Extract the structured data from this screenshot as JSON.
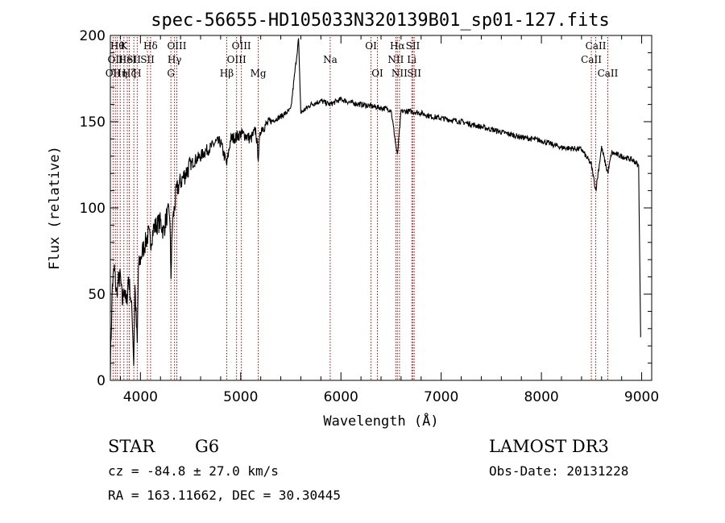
{
  "chart_data": {
    "type": "line",
    "title": "spec-56655-HD105033N320139B01_sp01-127.fits",
    "xlabel": "Wavelength (Å)",
    "ylabel": "Flux (relative)",
    "xlim": [
      3700,
      9100
    ],
    "ylim": [
      0,
      200
    ],
    "xticks": [
      4000,
      5000,
      6000,
      7000,
      8000,
      9000
    ],
    "yticks": [
      0,
      50,
      100,
      150,
      200
    ],
    "series": [
      {
        "name": "spectrum",
        "x": [
          3700,
          3720,
          3740,
          3760,
          3780,
          3800,
          3820,
          3840,
          3860,
          3880,
          3900,
          3920,
          3933,
          3945,
          3968,
          3980,
          4000,
          4020,
          4050,
          4080,
          4101,
          4130,
          4160,
          4200,
          4230,
          4260,
          4290,
          4305,
          4320,
          4340,
          4360,
          4400,
          4450,
          4500,
          4550,
          4600,
          4650,
          4700,
          4750,
          4800,
          4861,
          4900,
          4950,
          5000,
          5050,
          5100,
          5150,
          5175,
          5200,
          5300,
          5400,
          5500,
          5577,
          5600,
          5700,
          5800,
          5890,
          6000,
          6100,
          6200,
          6300,
          6400,
          6500,
          6563,
          6600,
          6700,
          6800,
          6900,
          7000,
          7200,
          7400,
          7600,
          7800,
          8000,
          8200,
          8400,
          8498,
          8542,
          8600,
          8662,
          8700,
          8800,
          8900,
          8950,
          8970,
          8990
        ],
        "y": [
          8,
          55,
          65,
          50,
          58,
          60,
          45,
          55,
          42,
          60,
          50,
          35,
          10,
          55,
          20,
          65,
          70,
          75,
          80,
          85,
          80,
          88,
          90,
          92,
          86,
          95,
          98,
          62,
          92,
          100,
          110,
          115,
          120,
          125,
          128,
          130,
          133,
          135,
          138,
          138,
          125,
          140,
          141,
          143,
          142,
          140,
          145,
          130,
          146,
          150,
          153,
          157,
          198,
          155,
          160,
          162,
          160,
          163,
          161,
          160,
          159,
          158,
          157,
          130,
          156,
          156,
          155,
          153,
          152,
          150,
          147,
          144,
          141,
          139,
          135,
          134,
          125,
          110,
          135,
          120,
          132,
          130,
          128,
          126,
          124,
          25
        ]
      }
    ],
    "emission_lines": [
      {
        "x": 3727,
        "row": 2,
        "label": "OII"
      },
      {
        "x": 3750,
        "row": 1,
        "label": "OII"
      },
      {
        "x": 3770,
        "row": 0,
        "label": "Hθ"
      },
      {
        "x": 3798,
        "row": 2,
        "label": "Hη"
      },
      {
        "x": 3835,
        "row": 0,
        "label": "K"
      },
      {
        "x": 3869,
        "row": 1,
        "label": "HeI"
      },
      {
        "x": 3889,
        "row": 2,
        "label": "Hζ"
      },
      {
        "x": 3934,
        "row": 1,
        "label": "SII"
      },
      {
        "x": 3968,
        "row": 2,
        "label": "H"
      },
      {
        "x": 4101,
        "row": 0,
        "label": "Hδ"
      },
      {
        "x": 4070,
        "row": 1,
        "label": "SII"
      },
      {
        "x": 4304,
        "row": 2,
        "label": "G"
      },
      {
        "x": 4340,
        "row": 1,
        "label": "Hγ"
      },
      {
        "x": 4363,
        "row": 0,
        "label": "OIII"
      },
      {
        "x": 4861,
        "row": 2,
        "label": "Hβ"
      },
      {
        "x": 4959,
        "row": 1,
        "label": "OIII"
      },
      {
        "x": 5007,
        "row": 0,
        "label": "OIII"
      },
      {
        "x": 5175,
        "row": 2,
        "label": "Mg"
      },
      {
        "x": 5893,
        "row": 1,
        "label": "Na"
      },
      {
        "x": 6300,
        "row": 0,
        "label": "OI"
      },
      {
        "x": 6364,
        "row": 2,
        "label": "OI"
      },
      {
        "x": 6563,
        "row": 0,
        "label": "Hα"
      },
      {
        "x": 6548,
        "row": 1,
        "label": "NII"
      },
      {
        "x": 6584,
        "row": 2,
        "label": "NII"
      },
      {
        "x": 6707,
        "row": 1,
        "label": "Li"
      },
      {
        "x": 6717,
        "row": 0,
        "label": "SII"
      },
      {
        "x": 6731,
        "row": 2,
        "label": "SII"
      },
      {
        "x": 8498,
        "row": 1,
        "label": "CaII"
      },
      {
        "x": 8542,
        "row": 0,
        "label": "CaII"
      },
      {
        "x": 8662,
        "row": 2,
        "label": "CaII"
      }
    ]
  },
  "info": {
    "object_class": "STAR",
    "subclass": "G6",
    "survey": "LAMOST DR3",
    "cz": "cz = -84.8 ± 27.0 km/s",
    "obs_date": "Obs-Date: 20131228",
    "coords": "RA = 163.11662, DEC =  30.30445"
  }
}
